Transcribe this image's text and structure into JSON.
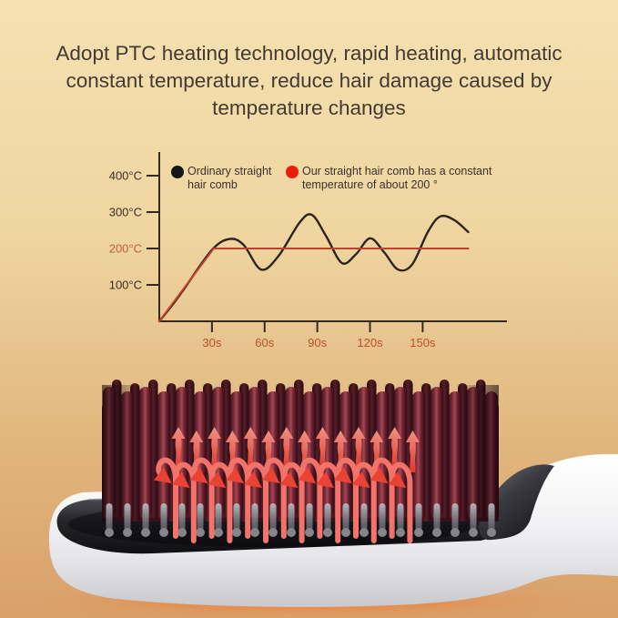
{
  "headline": {
    "lines": [
      "Adopt PTC heating technology, rapid heating, automatic",
      "constant temperature, reduce hair damage caused by",
      "temperature changes"
    ]
  },
  "chart_data": {
    "type": "line",
    "title": "",
    "xlabel": "",
    "ylabel": "",
    "x_unit": "seconds",
    "y_unit": "°C",
    "xlim": [
      0,
      198
    ],
    "ylim": [
      0,
      455
    ],
    "grid": false,
    "legend_position": "top",
    "axis_color": "#33291f",
    "x_tick_label_color": "#c24e2e",
    "x_ticks": [
      {
        "value": 30,
        "label": "30s"
      },
      {
        "value": 60,
        "label": "60s"
      },
      {
        "value": 90,
        "label": "90s"
      },
      {
        "value": 120,
        "label": "120s"
      },
      {
        "value": 150,
        "label": "150s"
      }
    ],
    "y_ticks": [
      {
        "value": 100,
        "label": "100°C",
        "color": "#3a2f23"
      },
      {
        "value": 200,
        "label": "200°C",
        "color": "#c2603c"
      },
      {
        "value": 300,
        "label": "300°C",
        "color": "#3a2f23"
      },
      {
        "value": 400,
        "label": "400°C",
        "color": "#3a2f23"
      }
    ],
    "legend": [
      {
        "label": "Ordinary straight hair comb",
        "dot_color": "#151515"
      },
      {
        "label": "Our straight hair comb has a constant temperature of about 200 °",
        "dot_color": "#ea1c0d"
      }
    ],
    "series": [
      {
        "name": "Ordinary straight hair comb",
        "color": "#2e231a",
        "smooth": true,
        "points": [
          [
            0,
            0
          ],
          [
            7,
            42
          ],
          [
            14,
            88
          ],
          [
            30,
            196
          ],
          [
            40,
            226
          ],
          [
            48,
            210
          ],
          [
            58,
            142
          ],
          [
            68,
            180
          ],
          [
            80,
            272
          ],
          [
            87,
            292
          ],
          [
            95,
            234
          ],
          [
            104,
            160
          ],
          [
            112,
            184
          ],
          [
            120,
            228
          ],
          [
            128,
            190
          ],
          [
            136,
            142
          ],
          [
            144,
            156
          ],
          [
            153,
            246
          ],
          [
            160,
            288
          ],
          [
            168,
            278
          ],
          [
            176,
            245
          ]
        ]
      },
      {
        "name": "Our straight hair comb (constant about 200°)",
        "color": "#c5402a",
        "smooth": false,
        "points": [
          [
            0,
            0
          ],
          [
            31,
            200
          ],
          [
            176,
            200
          ]
        ]
      }
    ]
  },
  "product": {
    "name": "hair straightening comb with heated bristles and rising heat arrows",
    "bristle_count": 22,
    "up_arrow_count": 14,
    "curl_arrow_count": 14,
    "colors": {
      "body": "#f6f6f8",
      "plate": "#1d1d21",
      "bristle_dark": "#451521",
      "bristle_light": "#a14a55",
      "arrow": "#ee5246",
      "glow": "#e87a34"
    }
  },
  "background": {
    "top": "#f5e1b1",
    "bottom": "#d9a06a"
  }
}
